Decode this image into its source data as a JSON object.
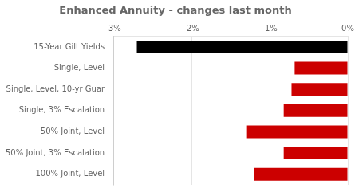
{
  "chart_data": {
    "type": "bar",
    "orientation": "horizontal",
    "title": "Enhanced Annuity - changes last month",
    "categories": [
      "15-Year Gilt Yields",
      "Single, Level",
      "Single, Level, 10-yr Guar",
      "Single, 3% Escalation",
      "50% Joint, Level",
      "50% Joint, 3% Escalation",
      "100% Joint, Level"
    ],
    "values": [
      -2.7,
      -0.68,
      -0.72,
      -0.82,
      -1.3,
      -0.82,
      -1.2
    ],
    "colors": [
      "#000000",
      "#cc0000",
      "#cc0000",
      "#cc0000",
      "#cc0000",
      "#cc0000",
      "#cc0000"
    ],
    "xlim": [
      -3.0,
      0.0
    ],
    "xticks": [
      {
        "value": -3.0,
        "label": "-3%"
      },
      {
        "value": -2.0,
        "label": "-2%"
      },
      {
        "value": -1.0,
        "label": "-1%"
      },
      {
        "value": 0.0,
        "label": "0%"
      }
    ],
    "grid": true
  }
}
